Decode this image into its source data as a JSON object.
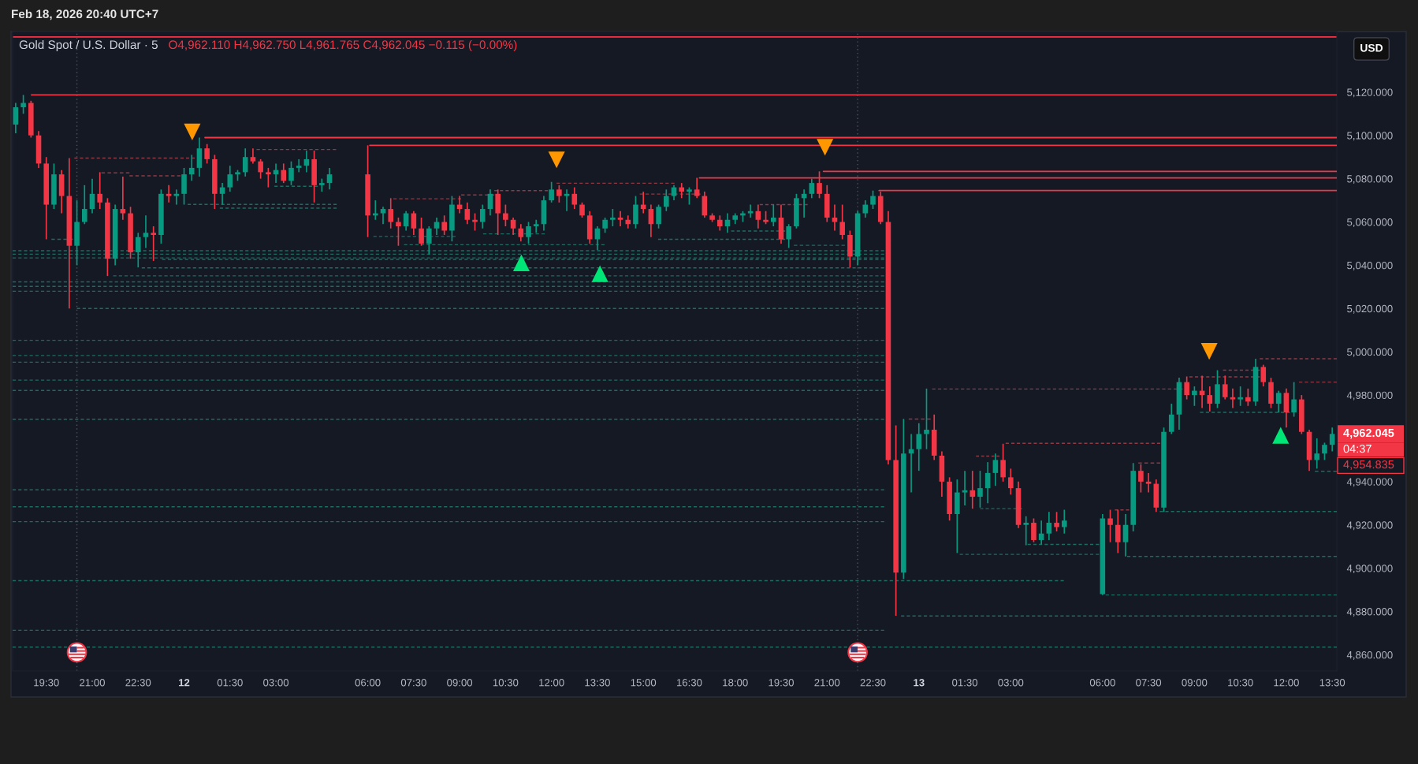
{
  "chart_data": {
    "type": "candlestick",
    "title": "Gold Spot / U.S. Dollar · 5",
    "subtitle": "O4,962.110 H4,962.750 L4,961.765 C4,962.045 −0.115 (−0.00%)",
    "x": [
      "2026-02-11T18:30",
      "2026-02-11T18:45",
      "2026-02-11T19:00",
      "2026-02-11T19:15",
      "2026-02-11T19:30",
      "2026-02-11T19:45",
      "2026-02-11T20:00",
      "2026-02-11T20:15",
      "2026-02-11T20:30",
      "2026-02-11T20:45",
      "2026-02-11T21:00",
      "2026-02-11T21:15",
      "2026-02-11T21:30",
      "2026-02-11T21:45",
      "2026-02-11T22:00",
      "2026-02-11T22:15",
      "2026-02-11T22:30",
      "2026-02-11T22:45",
      "2026-02-11T23:00",
      "2026-02-11T23:15",
      "2026-02-11T23:30",
      "2026-02-11T23:45",
      "2026-02-12T00:00",
      "2026-02-12T00:15",
      "2026-02-12T00:30",
      "2026-02-12T00:45",
      "2026-02-12T01:00",
      "2026-02-12T01:15",
      "2026-02-12T01:30",
      "2026-02-12T01:45",
      "2026-02-12T02:00",
      "2026-02-12T02:15",
      "2026-02-12T02:30",
      "2026-02-12T02:45",
      "2026-02-12T03:00",
      "2026-02-12T03:15",
      "2026-02-12T03:30",
      "2026-02-12T03:45",
      "2026-02-12T04:00",
      "2026-02-12T04:15",
      "2026-02-12T04:30",
      "2026-02-12T04:45",
      "2026-02-12T06:00",
      "2026-02-12T06:15",
      "2026-02-12T06:30",
      "2026-02-12T06:45",
      "2026-02-12T07:00",
      "2026-02-12T07:15",
      "2026-02-12T07:30",
      "2026-02-12T07:45",
      "2026-02-12T08:00",
      "2026-02-12T08:15",
      "2026-02-12T08:30",
      "2026-02-12T08:45",
      "2026-02-12T09:00",
      "2026-02-12T09:15",
      "2026-02-12T09:30",
      "2026-02-12T09:45",
      "2026-02-12T10:00",
      "2026-02-12T10:15",
      "2026-02-12T10:30",
      "2026-02-12T10:45",
      "2026-02-12T11:00",
      "2026-02-12T11:15",
      "2026-02-12T11:30",
      "2026-02-12T11:45",
      "2026-02-12T12:00",
      "2026-02-12T12:15",
      "2026-02-12T12:30",
      "2026-02-12T12:45",
      "2026-02-12T13:00",
      "2026-02-12T13:15",
      "2026-02-12T13:30",
      "2026-02-12T13:45",
      "2026-02-12T14:00",
      "2026-02-12T14:15",
      "2026-02-12T14:30",
      "2026-02-12T14:45",
      "2026-02-12T15:00",
      "2026-02-12T15:15",
      "2026-02-12T15:30",
      "2026-02-12T15:45",
      "2026-02-12T16:00",
      "2026-02-12T16:15",
      "2026-02-12T16:30",
      "2026-02-12T16:45",
      "2026-02-12T17:00",
      "2026-02-12T17:15",
      "2026-02-12T17:30",
      "2026-02-12T17:45",
      "2026-02-12T18:00",
      "2026-02-12T18:15",
      "2026-02-12T18:30",
      "2026-02-12T18:45",
      "2026-02-12T19:00",
      "2026-02-12T19:15",
      "2026-02-12T19:30",
      "2026-02-12T19:45",
      "2026-02-12T20:00",
      "2026-02-12T20:15",
      "2026-02-12T20:30",
      "2026-02-12T20:45",
      "2026-02-12T21:00",
      "2026-02-12T21:15",
      "2026-02-12T21:30",
      "2026-02-12T21:45",
      "2026-02-12T22:00",
      "2026-02-12T22:15",
      "2026-02-12T22:30",
      "2026-02-12T22:45",
      "2026-02-12T23:00",
      "2026-02-12T23:15",
      "2026-02-12T23:30",
      "2026-02-12T23:45",
      "2026-02-13T00:00",
      "2026-02-13T00:15",
      "2026-02-13T00:30",
      "2026-02-13T00:45",
      "2026-02-13T01:00",
      "2026-02-13T01:15",
      "2026-02-13T01:30",
      "2026-02-13T01:45",
      "2026-02-13T02:00",
      "2026-02-13T02:15",
      "2026-02-13T02:30",
      "2026-02-13T02:45",
      "2026-02-13T03:00",
      "2026-02-13T03:15",
      "2026-02-13T03:30",
      "2026-02-13T03:45",
      "2026-02-13T04:00",
      "2026-02-13T04:15",
      "2026-02-13T04:30",
      "2026-02-13T04:45",
      "2026-02-13T06:00",
      "2026-02-13T06:15",
      "2026-02-13T06:30",
      "2026-02-13T06:45",
      "2026-02-13T07:00",
      "2026-02-13T07:15",
      "2026-02-13T07:30",
      "2026-02-13T07:45",
      "2026-02-13T08:00",
      "2026-02-13T08:15",
      "2026-02-13T08:30",
      "2026-02-13T08:45",
      "2026-02-13T09:00",
      "2026-02-13T09:15",
      "2026-02-13T09:30",
      "2026-02-13T09:45",
      "2026-02-13T10:00",
      "2026-02-13T10:15",
      "2026-02-13T10:30",
      "2026-02-13T10:45",
      "2026-02-13T11:00",
      "2026-02-13T11:15",
      "2026-02-13T11:30",
      "2026-02-13T11:45",
      "2026-02-13T12:00",
      "2026-02-13T12:15",
      "2026-02-13T12:30",
      "2026-02-13T12:45",
      "2026-02-13T13:00",
      "2026-02-13T13:15",
      "2026-02-13T13:30"
    ],
    "ohlc": [
      [
        5105,
        5115,
        5101,
        5113
      ],
      [
        5113,
        5118.7,
        5110,
        5115
      ],
      [
        5115,
        5116,
        5099,
        5100
      ],
      [
        5100,
        5102,
        5085,
        5087
      ],
      [
        5087,
        5090,
        5052,
        5068
      ],
      [
        5068,
        5087,
        5066,
        5082
      ],
      [
        5082,
        5084,
        5064,
        5072
      ],
      [
        5072,
        5089.5,
        5020,
        5049
      ],
      [
        5049,
        5070,
        5040,
        5060
      ],
      [
        5060,
        5077,
        5059,
        5066
      ],
      [
        5066,
        5080,
        5064,
        5073
      ],
      [
        5073,
        5083,
        5066,
        5069
      ],
      [
        5069,
        5071,
        5035,
        5043
      ],
      [
        5043,
        5068,
        5040,
        5066
      ],
      [
        5066,
        5081,
        5061,
        5064
      ],
      [
        5064,
        5067,
        5043,
        5046
      ],
      [
        5046,
        5055,
        5039,
        5053
      ],
      [
        5053,
        5063,
        5048,
        5055
      ],
      [
        5055,
        5058,
        5042,
        5054
      ],
      [
        5054,
        5075,
        5050,
        5073
      ],
      [
        5073,
        5077,
        5069,
        5072
      ],
      [
        5072,
        5075,
        5068,
        5073
      ],
      [
        5073,
        5085,
        5068,
        5082
      ],
      [
        5082,
        5091,
        5079,
        5085
      ],
      [
        5085,
        5099,
        5081,
        5094
      ],
      [
        5094,
        5096,
        5087,
        5089
      ],
      [
        5089,
        5091,
        5066,
        5073
      ],
      [
        5073,
        5078,
        5068,
        5076
      ],
      [
        5076,
        5086,
        5074,
        5082
      ],
      [
        5082,
        5084,
        5079,
        5083
      ],
      [
        5083,
        5094,
        5081,
        5090
      ],
      [
        5090,
        5094,
        5087,
        5088
      ],
      [
        5088,
        5089,
        5080,
        5083
      ],
      [
        5083,
        5085,
        5076,
        5082
      ],
      [
        5082,
        5087,
        5078,
        5084
      ],
      [
        5084,
        5087,
        5078,
        5079
      ],
      [
        5079,
        5088,
        5077,
        5085
      ],
      [
        5085,
        5089,
        5083,
        5086
      ],
      [
        5086,
        5093,
        5083,
        5089
      ],
      [
        5089,
        5093,
        5069,
        5077
      ],
      [
        5077,
        5080,
        5074,
        5078
      ],
      [
        5078,
        5085,
        5075,
        5082
      ],
      [
        5082,
        5095.4,
        5053,
        5063
      ],
      [
        5063,
        5070,
        5061,
        5064
      ],
      [
        5064,
        5067,
        5059,
        5066
      ],
      [
        5066,
        5071,
        5057,
        5060
      ],
      [
        5060,
        5062,
        5049,
        5058
      ],
      [
        5058,
        5065,
        5056,
        5064
      ],
      [
        5064,
        5065,
        5054,
        5057
      ],
      [
        5057,
        5062,
        5049,
        5050
      ],
      [
        5050,
        5058,
        5045,
        5057
      ],
      [
        5057,
        5062,
        5054,
        5060
      ],
      [
        5060,
        5063,
        5054,
        5056
      ],
      [
        5056,
        5072,
        5051,
        5068
      ],
      [
        5068,
        5072,
        5064,
        5066
      ],
      [
        5066,
        5069,
        5059,
        5061
      ],
      [
        5061,
        5064,
        5056,
        5060
      ],
      [
        5060,
        5068,
        5057,
        5066
      ],
      [
        5066,
        5075,
        5063,
        5073
      ],
      [
        5073,
        5075,
        5054,
        5064
      ],
      [
        5064,
        5068,
        5058,
        5061
      ],
      [
        5061,
        5062,
        5054,
        5057
      ],
      [
        5057,
        5059,
        5051,
        5053
      ],
      [
        5053,
        5060,
        5050,
        5058
      ],
      [
        5058,
        5061,
        5055,
        5059
      ],
      [
        5059,
        5072,
        5056,
        5070
      ],
      [
        5070,
        5078.5,
        5069,
        5075
      ],
      [
        5075,
        5077,
        5069,
        5072
      ],
      [
        5072,
        5075,
        5065,
        5073
      ],
      [
        5073,
        5076,
        5066,
        5068
      ],
      [
        5068,
        5069,
        5062,
        5063
      ],
      [
        5063,
        5065,
        5050,
        5052
      ],
      [
        5052,
        5058,
        5047,
        5057
      ],
      [
        5057,
        5062,
        5055,
        5061
      ],
      [
        5061,
        5066,
        5058,
        5062
      ],
      [
        5062,
        5065,
        5058,
        5061
      ],
      [
        5061,
        5063,
        5057,
        5059
      ],
      [
        5059,
        5072,
        5057,
        5068
      ],
      [
        5068,
        5074,
        5064,
        5066
      ],
      [
        5066,
        5068,
        5053,
        5059
      ],
      [
        5059,
        5068,
        5057,
        5067
      ],
      [
        5067,
        5075,
        5065,
        5072
      ],
      [
        5072,
        5077,
        5070,
        5076
      ],
      [
        5076,
        5078,
        5071,
        5074
      ],
      [
        5074,
        5076,
        5068,
        5075
      ],
      [
        5075,
        5080.4,
        5071,
        5072
      ],
      [
        5072,
        5074,
        5062,
        5063
      ],
      [
        5063,
        5064,
        5060,
        5061
      ],
      [
        5061,
        5063,
        5056,
        5058
      ],
      [
        5058,
        5064,
        5055,
        5061
      ],
      [
        5061,
        5064,
        5059,
        5063
      ],
      [
        5063,
        5065,
        5060,
        5064
      ],
      [
        5064,
        5068,
        5062,
        5065
      ],
      [
        5065,
        5068,
        5057,
        5061
      ],
      [
        5061,
        5065,
        5059,
        5060
      ],
      [
        5060,
        5068,
        5058,
        5062
      ],
      [
        5062,
        5068,
        5050,
        5052
      ],
      [
        5052,
        5059,
        5048,
        5058
      ],
      [
        5058,
        5073,
        5057,
        5071
      ],
      [
        5071,
        5075,
        5062,
        5073
      ],
      [
        5073,
        5080,
        5071,
        5078
      ],
      [
        5078,
        5083.4,
        5071,
        5073
      ],
      [
        5073,
        5077,
        5060,
        5062
      ],
      [
        5062,
        5068,
        5056,
        5060
      ],
      [
        5060,
        5068,
        5052,
        5054
      ],
      [
        5054,
        5056,
        5039,
        5044
      ],
      [
        5044,
        5065,
        5040,
        5064
      ],
      [
        5064,
        5070,
        5062,
        5068
      ],
      [
        5068,
        5074.5,
        5066,
        5072
      ],
      [
        5072,
        5074,
        5059,
        5060
      ],
      [
        5060,
        5065,
        4948,
        4950
      ],
      [
        4950,
        4966,
        4878,
        4898
      ],
      [
        4898,
        4969,
        4895,
        4953
      ],
      [
        4953,
        4962,
        4935,
        4955
      ],
      [
        4955,
        4967,
        4945,
        4962
      ],
      [
        4962,
        4983,
        4955,
        4964
      ],
      [
        4964,
        4971,
        4950,
        4952
      ],
      [
        4952,
        4954,
        4933,
        4940
      ],
      [
        4940,
        4942,
        4922,
        4925
      ],
      [
        4925,
        4941,
        4907,
        4935
      ],
      [
        4935,
        4945,
        4929,
        4936
      ],
      [
        4936,
        4945,
        4927.5,
        4933
      ],
      [
        4933,
        4945,
        4928,
        4937
      ],
      [
        4937,
        4949,
        4930,
        4944
      ],
      [
        4944,
        4953,
        4938,
        4950
      ],
      [
        4950,
        4957.5,
        4940,
        4942
      ],
      [
        4942,
        4946,
        4934,
        4937
      ],
      [
        4937,
        4940,
        4918.5,
        4920
      ],
      [
        4920,
        4924,
        4910.6,
        4921
      ],
      [
        4921,
        4923,
        4912,
        4913
      ],
      [
        4913,
        4922,
        4911,
        4916
      ],
      [
        4916,
        4926,
        4913,
        4921
      ],
      [
        4921,
        4926,
        4917,
        4919
      ],
      [
        4919,
        4927,
        4916,
        4922
      ],
      [
        4888,
        4925,
        4887.6,
        4923
      ],
      [
        4923,
        4927,
        4912,
        4920
      ],
      [
        4920,
        4927,
        4907,
        4912
      ],
      [
        4912,
        4925,
        4905.4,
        4920
      ],
      [
        4920,
        4948.6,
        4917,
        4945
      ],
      [
        4945,
        4948,
        4935,
        4940
      ],
      [
        4940,
        4944,
        4935,
        4939
      ],
      [
        4939,
        4941,
        4926,
        4928
      ],
      [
        4928,
        4965,
        4926,
        4963
      ],
      [
        4963,
        4976,
        4962,
        4971
      ],
      [
        4971,
        4988,
        4964,
        4986
      ],
      [
        4986,
        4988.6,
        4978,
        4980
      ],
      [
        4980,
        4984,
        4975,
        4982
      ],
      [
        4982,
        4989,
        4974,
        4980
      ],
      [
        4980,
        4984,
        4972.4,
        4976
      ],
      [
        4976,
        4991.5,
        4974,
        4985
      ],
      [
        4985,
        4989,
        4978,
        4979
      ],
      [
        4979,
        4983,
        4974,
        4978
      ],
      [
        4978,
        4984,
        4975,
        4979
      ],
      [
        4979,
        4983,
        4975,
        4977
      ],
      [
        4977,
        4996.8,
        4975,
        4993
      ],
      [
        4993,
        4994,
        4984,
        4986
      ],
      [
        4986,
        4988,
        4974,
        4976
      ],
      [
        4976,
        4982,
        4972,
        4981
      ],
      [
        4981,
        4983,
        4965,
        4972
      ],
      [
        4972,
        4986,
        4970,
        4978
      ],
      [
        4978,
        4980,
        4962,
        4963
      ],
      [
        4963,
        4964,
        4945,
        4950
      ],
      [
        4950,
        4960,
        4946,
        4953
      ],
      [
        4953,
        4958,
        4950,
        4957
      ],
      [
        4957,
        4965,
        4954,
        4962.045
      ]
    ],
    "series": [
      {
        "type": "line",
        "x": [
          "2026-02-11T19:01",
          "2026-02-13T13:39"
        ],
        "values": [
          5118.7,
          5118.7
        ],
        "color": "#f23645",
        "line_style": "solid"
      },
      {
        "type": "line",
        "x": [
          "2026-02-12T00:41",
          "2026-02-13T13:39"
        ],
        "values": [
          5099,
          5099
        ],
        "color": "#f23645",
        "line_style": "solid"
      },
      {
        "type": "line",
        "x": [
          "2026-02-12T06:04",
          "2026-02-13T13:39"
        ],
        "values": [
          5095.4,
          5095.4
        ],
        "color": "#f23645",
        "line_style": "solid"
      },
      {
        "type": "line",
        "x": [
          "2026-02-12T16:50",
          "2026-02-13T13:39"
        ],
        "values": [
          5080.4,
          5080.4
        ],
        "color": "#f23645",
        "line_style": "solid"
      },
      {
        "type": "line",
        "x": [
          "2026-02-12T20:53",
          "2026-02-13T13:39"
        ],
        "values": [
          5083.4,
          5083.4
        ],
        "color": "#f23645",
        "line_style": "solid"
      },
      {
        "type": "line",
        "x": [
          "2026-02-12T22:42",
          "2026-02-13T13:39"
        ],
        "values": [
          5074.5,
          5074.5
        ],
        "color": "#f23645",
        "line_style": "solid"
      },
      {
        "type": "line",
        "x": [
          "2026-02-11T20:25",
          "2026-02-12T00:21"
        ],
        "values": [
          5089.5,
          5089.5
        ],
        "color": "#8e3a45",
        "line_style": "dashed"
      },
      {
        "type": "line",
        "x": [
          "2026-02-11T21:18",
          "2026-02-11T22:13"
        ],
        "values": [
          5082.7,
          5082.7
        ],
        "color": "#8e3a45",
        "line_style": "dashed"
      },
      {
        "type": "line",
        "x": [
          "2026-02-11T22:13",
          "2026-02-11T23:53"
        ],
        "values": [
          5081.3,
          5081.3
        ],
        "color": "#8e3a45",
        "line_style": "dashed"
      },
      {
        "type": "line",
        "x": [
          "2026-02-12T02:22",
          "2026-02-12T04:58"
        ],
        "values": [
          5093.5,
          5093.5
        ],
        "color": "#8e3a45",
        "line_style": "dashed"
      },
      {
        "type": "line",
        "x": [
          "2026-02-12T06:50",
          "2026-02-12T09:03"
        ],
        "values": [
          5070.7,
          5070.7
        ],
        "color": "#8e3a45",
        "line_style": "dashed"
      },
      {
        "type": "line",
        "x": [
          "2026-02-12T09:03",
          "2026-02-12T10:08"
        ],
        "values": [
          5072.5,
          5072.5
        ],
        "color": "#8e3a45",
        "line_style": "dashed"
      },
      {
        "type": "line",
        "x": [
          "2026-02-12T10:08",
          "2026-02-12T11:53"
        ],
        "values": [
          5074.5,
          5074.5
        ],
        "color": "#8e3a45",
        "line_style": "dashed"
      },
      {
        "type": "line",
        "x": [
          "2026-02-12T12:10",
          "2026-02-12T16:01"
        ],
        "values": [
          5077.9,
          5077.9
        ],
        "color": "#8e3a45",
        "line_style": "dashed"
      },
      {
        "type": "line",
        "x": [
          "2026-02-12T14:53",
          "2026-02-12T16:52"
        ],
        "values": [
          5072.9,
          5072.9
        ],
        "color": "#8e3a45",
        "line_style": "dashed"
      },
      {
        "type": "line",
        "x": [
          "2026-02-12T18:48",
          "2026-02-12T20:22"
        ],
        "values": [
          5068,
          5068
        ],
        "color": "#8e3a45",
        "line_style": "dashed"
      },
      {
        "type": "line",
        "x": [
          "2026-02-13T00:26",
          "2026-02-13T08:37"
        ],
        "values": [
          4982.8,
          4982.8
        ],
        "color": "#8e3a45",
        "line_style": "dashed"
      },
      {
        "type": "line",
        "x": [
          "2026-02-12T23:40",
          "2026-02-13T00:23"
        ],
        "values": [
          4968.9,
          4968.9
        ],
        "color": "#8e3a45",
        "line_style": "dashed"
      },
      {
        "type": "line",
        "x": [
          "2026-02-13T02:50",
          "2026-02-13T07:53"
        ],
        "values": [
          4957.7,
          4957.7
        ],
        "color": "#8e3a45",
        "line_style": "dashed"
      },
      {
        "type": "line",
        "x": [
          "2026-02-13T01:52",
          "2026-02-13T02:38"
        ],
        "values": [
          4951.8,
          4951.8
        ],
        "color": "#8e3a45",
        "line_style": "dashed"
      },
      {
        "type": "line",
        "x": [
          "2026-02-13T07:10",
          "2026-02-13T07:53"
        ],
        "values": [
          4948.6,
          4948.6
        ],
        "color": "#8e3a45",
        "line_style": "dashed"
      },
      {
        "type": "line",
        "x": [
          "2026-02-13T06:24",
          "2026-02-13T06:52"
        ],
        "values": [
          4926.9,
          4926.9
        ],
        "color": "#8e3a45",
        "line_style": "dashed"
      },
      {
        "type": "line",
        "x": [
          "2026-02-13T08:50",
          "2026-02-13T11:08"
        ],
        "values": [
          4988.4,
          4988.4
        ],
        "color": "#8e3a45",
        "line_style": "dashed"
      },
      {
        "type": "line",
        "x": [
          "2026-02-13T09:56",
          "2026-02-13T11:08"
        ],
        "values": [
          4991.5,
          4991.5
        ],
        "color": "#8e3a45",
        "line_style": "dashed"
      },
      {
        "type": "line",
        "x": [
          "2026-02-13T11:08",
          "2026-02-13T13:39"
        ],
        "values": [
          4996.8,
          4996.8
        ],
        "color": "#8e3a45",
        "line_style": "dashed"
      },
      {
        "type": "line",
        "x": [
          "2026-02-13T12:25",
          "2026-02-13T13:39"
        ],
        "values": [
          4986,
          4986
        ],
        "color": "#8e3a45",
        "line_style": "dashed"
      },
      {
        "type": "line",
        "x": [
          "2026-02-11T18:24",
          "2026-02-12T22:52"
        ],
        "values": [
          5046.7,
          5046.7
        ],
        "color": "#1e6b62",
        "line_style": "dashed"
      },
      {
        "type": "line",
        "x": [
          "2026-02-11T18:24",
          "2026-02-12T22:52"
        ],
        "values": [
          5045.1,
          5045.1
        ],
        "color": "#1e6b62",
        "line_style": "dashed"
      },
      {
        "type": "line",
        "x": [
          "2026-02-11T18:24",
          "2026-02-12T22:52"
        ],
        "values": [
          5043.4,
          5043.4
        ],
        "color": "#1e6b62",
        "line_style": "dashed"
      },
      {
        "type": "line",
        "x": [
          "2026-02-11T23:17",
          "2026-02-12T22:52"
        ],
        "values": [
          5042.7,
          5042.7
        ],
        "color": "#1e6b62",
        "line_style": "dashed"
      },
      {
        "type": "line",
        "x": [
          "2026-02-11T22:37",
          "2026-02-12T22:52"
        ],
        "values": [
          5038.8,
          5038.8
        ],
        "color": "#1e6b62",
        "line_style": "dashed"
      },
      {
        "type": "line",
        "x": [
          "2026-02-11T21:41",
          "2026-02-12T22:52"
        ],
        "values": [
          5035.1,
          5035.1
        ],
        "color": "#1e6b62",
        "line_style": "dashed"
      },
      {
        "type": "line",
        "x": [
          "2026-02-11T18:24",
          "2026-02-12T22:52"
        ],
        "values": [
          5032.3,
          5032.3
        ],
        "color": "#1e6b62",
        "line_style": "dashed"
      },
      {
        "type": "line",
        "x": [
          "2026-02-11T18:24",
          "2026-02-12T22:52"
        ],
        "values": [
          5030.2,
          5030.2
        ],
        "color": "#1e6b62",
        "line_style": "dashed"
      },
      {
        "type": "line",
        "x": [
          "2026-02-11T18:24",
          "2026-02-12T22:52"
        ],
        "values": [
          5028,
          5028
        ],
        "color": "#1e6b62",
        "line_style": "dashed"
      },
      {
        "type": "line",
        "x": [
          "2026-02-11T20:30",
          "2026-02-12T22:52"
        ],
        "values": [
          5020,
          5020
        ],
        "color": "#1e6b62",
        "line_style": "dashed"
      },
      {
        "type": "line",
        "x": [
          "2026-02-11T18:24",
          "2026-02-12T22:52"
        ],
        "values": [
          5005.3,
          5005.3
        ],
        "color": "#1e6b62",
        "line_style": "dashed"
      },
      {
        "type": "line",
        "x": [
          "2026-02-11T18:24",
          "2026-02-12T22:52"
        ],
        "values": [
          4998.3,
          4998.3
        ],
        "color": "#1e6b62",
        "line_style": "dashed"
      },
      {
        "type": "line",
        "x": [
          "2026-02-11T18:24",
          "2026-02-12T22:52"
        ],
        "values": [
          4995.2,
          4995.2
        ],
        "color": "#1e6b62",
        "line_style": "dashed"
      },
      {
        "type": "line",
        "x": [
          "2026-02-11T18:24",
          "2026-02-12T22:52"
        ],
        "values": [
          4986.9,
          4986.9
        ],
        "color": "#1e6b62",
        "line_style": "dashed"
      },
      {
        "type": "line",
        "x": [
          "2026-02-11T18:24",
          "2026-02-12T22:52"
        ],
        "values": [
          4982.1,
          4982.1
        ],
        "color": "#1e6b62",
        "line_style": "dashed"
      },
      {
        "type": "line",
        "x": [
          "2026-02-11T18:24",
          "2026-02-12T22:52"
        ],
        "values": [
          4968.8,
          4968.8
        ],
        "color": "#1e6b62",
        "line_style": "dashed"
      },
      {
        "type": "line",
        "x": [
          "2026-02-11T18:24",
          "2026-02-12T22:52"
        ],
        "values": [
          4936.2,
          4936.2
        ],
        "color": "#1e6b62",
        "line_style": "dashed"
      },
      {
        "type": "line",
        "x": [
          "2026-02-11T18:24",
          "2026-02-12T22:52"
        ],
        "values": [
          4928.4,
          4928.4
        ],
        "color": "#1e6b62",
        "line_style": "dashed"
      },
      {
        "type": "line",
        "x": [
          "2026-02-11T18:24",
          "2026-02-12T22:52"
        ],
        "values": [
          4921.5,
          4921.5
        ],
        "color": "#1e6b62",
        "line_style": "dashed"
      },
      {
        "type": "line",
        "x": [
          "2026-02-11T18:24",
          "2026-02-13T04:44"
        ],
        "values": [
          4894.2,
          4894.2
        ],
        "color": "#1e6b62",
        "line_style": "dashed"
      },
      {
        "type": "line",
        "x": [
          "2026-02-11T18:24",
          "2026-02-12T22:52"
        ],
        "values": [
          4871.3,
          4871.3
        ],
        "color": "#1e6b62",
        "line_style": "dashed"
      },
      {
        "type": "line",
        "x": [
          "2026-02-11T18:24",
          "2026-02-13T13:39"
        ],
        "values": [
          4863.5,
          4863.5
        ],
        "color": "#1e6b62",
        "line_style": "dashed"
      },
      {
        "type": "line",
        "x": [
          "2026-02-13T07:52",
          "2026-02-13T13:39"
        ],
        "values": [
          4926.2,
          4926.2
        ],
        "color": "#1e6b62",
        "line_style": "dashed"
      },
      {
        "type": "line",
        "x": [
          "2026-02-13T06:48",
          "2026-02-13T13:39"
        ],
        "values": [
          4905.4,
          4905.4
        ],
        "color": "#1e6b62",
        "line_style": "dashed"
      },
      {
        "type": "line",
        "x": [
          "2026-02-13T06:06",
          "2026-02-13T13:39"
        ],
        "values": [
          4887.6,
          4887.6
        ],
        "color": "#1e6b62",
        "line_style": "dashed"
      },
      {
        "type": "line",
        "x": [
          "2026-02-12T23:25",
          "2026-02-13T13:39"
        ],
        "values": [
          4877.9,
          4877.9
        ],
        "color": "#1e6b62",
        "line_style": "dashed"
      },
      {
        "type": "line",
        "x": [
          "2026-02-13T02:00",
          "2026-02-13T03:22"
        ],
        "values": [
          4927.5,
          4927.5
        ],
        "color": "#1e6b62",
        "line_style": "dashed"
      },
      {
        "type": "line",
        "x": [
          "2026-02-13T03:33",
          "2026-02-13T05:53"
        ],
        "values": [
          4911,
          4911
        ],
        "color": "#1e6b62",
        "line_style": "dashed"
      },
      {
        "type": "line",
        "x": [
          "2026-02-13T01:20",
          "2026-02-13T05:53"
        ],
        "values": [
          4906.4,
          4906.4
        ],
        "color": "#1e6b62",
        "line_style": "dashed"
      },
      {
        "type": "line",
        "x": [
          "2026-02-13T09:11",
          "2026-02-13T12:07"
        ],
        "values": [
          4972,
          4972
        ],
        "color": "#1e6b62",
        "line_style": "dashed"
      },
      {
        "type": "line",
        "x": [
          "2026-02-13T12:56",
          "2026-02-13T13:39"
        ],
        "values": [
          4944.8,
          4944.8
        ],
        "color": "#1e6b62",
        "line_style": "dashed"
      },
      {
        "type": "line",
        "x": [
          "2026-02-12T06:11",
          "2026-02-12T08:52"
        ],
        "values": [
          5053.3,
          5053.3
        ],
        "color": "#1e6b62",
        "line_style": "dashed"
      },
      {
        "type": "line",
        "x": [
          "2026-02-12T07:11",
          "2026-02-12T13:44"
        ],
        "values": [
          5049.5,
          5049.5
        ],
        "color": "#1e6b62",
        "line_style": "dashed"
      },
      {
        "type": "line",
        "x": [
          "2026-02-12T09:46",
          "2026-02-12T11:47"
        ],
        "values": [
          5054.5,
          5054.5
        ],
        "color": "#1e6b62",
        "line_style": "dashed"
      },
      {
        "type": "line",
        "x": [
          "2026-02-12T15:29",
          "2026-02-12T19:38"
        ],
        "values": [
          5052,
          5052
        ],
        "color": "#1e6b62",
        "line_style": "dashed"
      },
      {
        "type": "line",
        "x": [
          "2026-02-12T17:52",
          "2026-02-12T19:38"
        ],
        "values": [
          5055.8,
          5055.8
        ],
        "color": "#1e6b62",
        "line_style": "dashed"
      },
      {
        "type": "line",
        "x": [
          "2026-02-12T19:55",
          "2026-02-12T21:35"
        ],
        "values": [
          5049.2,
          5049.2
        ],
        "color": "#1e6b62",
        "line_style": "dashed"
      },
      {
        "type": "line",
        "x": [
          "2026-02-11T19:40",
          "2026-02-11T20:22"
        ],
        "values": [
          5052,
          5052
        ],
        "color": "#1e6b62",
        "line_style": "dashed"
      },
      {
        "type": "line",
        "x": [
          "2026-02-12T00:07",
          "2026-02-12T04:59"
        ],
        "values": [
          5068.1,
          5068.1
        ],
        "color": "#1e6b62",
        "line_style": "dashed"
      },
      {
        "type": "line",
        "x": [
          "2026-02-12T01:10",
          "2026-02-12T04:59"
        ],
        "values": [
          5066.4,
          5066.4
        ],
        "color": "#1e6b62",
        "line_style": "dashed"
      },
      {
        "type": "line",
        "x": [
          "2026-02-12T02:57",
          "2026-02-12T04:22"
        ],
        "values": [
          5076.5,
          5076.5
        ],
        "color": "#1e6b62",
        "line_style": "dashed"
      },
      {
        "type": "scatter",
        "x": [
          "2026-02-12T00:16",
          "2026-02-12T12:10",
          "2026-02-12T20:56",
          "2026-02-13T09:29"
        ],
        "values": [
          5101.6,
          5088.7,
          5094.5,
          5000.2
        ],
        "color": "#ff9800",
        "marker": "triangle"
      },
      {
        "type": "scatter",
        "x": [
          "2026-02-12T11:01",
          "2026-02-12T13:35",
          "2026-02-13T11:49"
        ],
        "values": [
          5041.1,
          5036.1,
          4961.4
        ],
        "color": "#00e676",
        "marker": "triangle"
      }
    ],
    "ref_lines": [
      {
        "axis": "y",
        "value": 5145.5,
        "color": "#f23645",
        "line_style": "solid"
      },
      {
        "axis": "x",
        "value": "2026-02-11T20:30",
        "color": "#50535e",
        "line_style": "dotted"
      },
      {
        "axis": "x",
        "value": "2026-02-12T22:00",
        "color": "#50535e",
        "line_style": "dotted"
      }
    ],
    "xlim": [
      "2026-02-11T18:24",
      "2026-02-13T13:39"
    ],
    "xticks": [
      {
        "value": "2026-02-11T19:30",
        "label": "19:30"
      },
      {
        "value": "2026-02-11T21:00",
        "label": "21:00"
      },
      {
        "value": "2026-02-11T22:30",
        "label": "22:30"
      },
      {
        "value": "2026-02-12T00:00",
        "label": "12"
      },
      {
        "value": "2026-02-12T01:30",
        "label": "01:30"
      },
      {
        "value": "2026-02-12T03:00",
        "label": "03:00"
      },
      {
        "value": "2026-02-12T06:00",
        "label": "06:00"
      },
      {
        "value": "2026-02-12T07:30",
        "label": "07:30"
      },
      {
        "value": "2026-02-12T09:00",
        "label": "09:00"
      },
      {
        "value": "2026-02-12T10:30",
        "label": "10:30"
      },
      {
        "value": "2026-02-12T12:00",
        "label": "12:00"
      },
      {
        "value": "2026-02-12T13:30",
        "label": "13:30"
      },
      {
        "value": "2026-02-12T15:00",
        "label": "15:00"
      },
      {
        "value": "2026-02-12T16:30",
        "label": "16:30"
      },
      {
        "value": "2026-02-12T18:00",
        "label": "18:00"
      },
      {
        "value": "2026-02-12T19:30",
        "label": "19:30"
      },
      {
        "value": "2026-02-12T21:00",
        "label": "21:00"
      },
      {
        "value": "2026-02-12T22:30",
        "label": "22:30"
      },
      {
        "value": "2026-02-13T00:00",
        "label": "13"
      },
      {
        "value": "2026-02-13T01:30",
        "label": "01:30"
      },
      {
        "value": "2026-02-13T03:00",
        "label": "03:00"
      },
      {
        "value": "2026-02-13T06:00",
        "label": "06:00"
      },
      {
        "value": "2026-02-13T07:30",
        "label": "07:30"
      },
      {
        "value": "2026-02-13T09:00",
        "label": "09:00"
      },
      {
        "value": "2026-02-13T10:30",
        "label": "10:30"
      },
      {
        "value": "2026-02-13T12:00",
        "label": "12:00"
      },
      {
        "value": "2026-02-13T13:30",
        "label": "13:30"
      }
    ],
    "ylim": [
      4852.5,
      5148
    ],
    "yticks": [
      {
        "value": 5120,
        "label": "5,120.000"
      },
      {
        "value": 5100,
        "label": "5,100.000"
      },
      {
        "value": 5080,
        "label": "5,080.000"
      },
      {
        "value": 5060,
        "label": "5,060.000"
      },
      {
        "value": 5040,
        "label": "5,040.000"
      },
      {
        "value": 5020,
        "label": "5,020.000"
      },
      {
        "value": 5000,
        "label": "5,000.000"
      },
      {
        "value": 4980,
        "label": "4,980.000"
      },
      {
        "value": 4940,
        "label": "4,940.000"
      },
      {
        "value": 4920,
        "label": "4,920.000"
      },
      {
        "value": 4900,
        "label": "4,900.000"
      },
      {
        "value": 4880,
        "label": "4,880.000"
      },
      {
        "value": 4860,
        "label": "4,860.000"
      }
    ],
    "annotations": [
      "Feb 18, 2026 20:40 UTC+7",
      "USD",
      "4,962.045",
      "04:37",
      "4,954.835"
    ]
  }
}
